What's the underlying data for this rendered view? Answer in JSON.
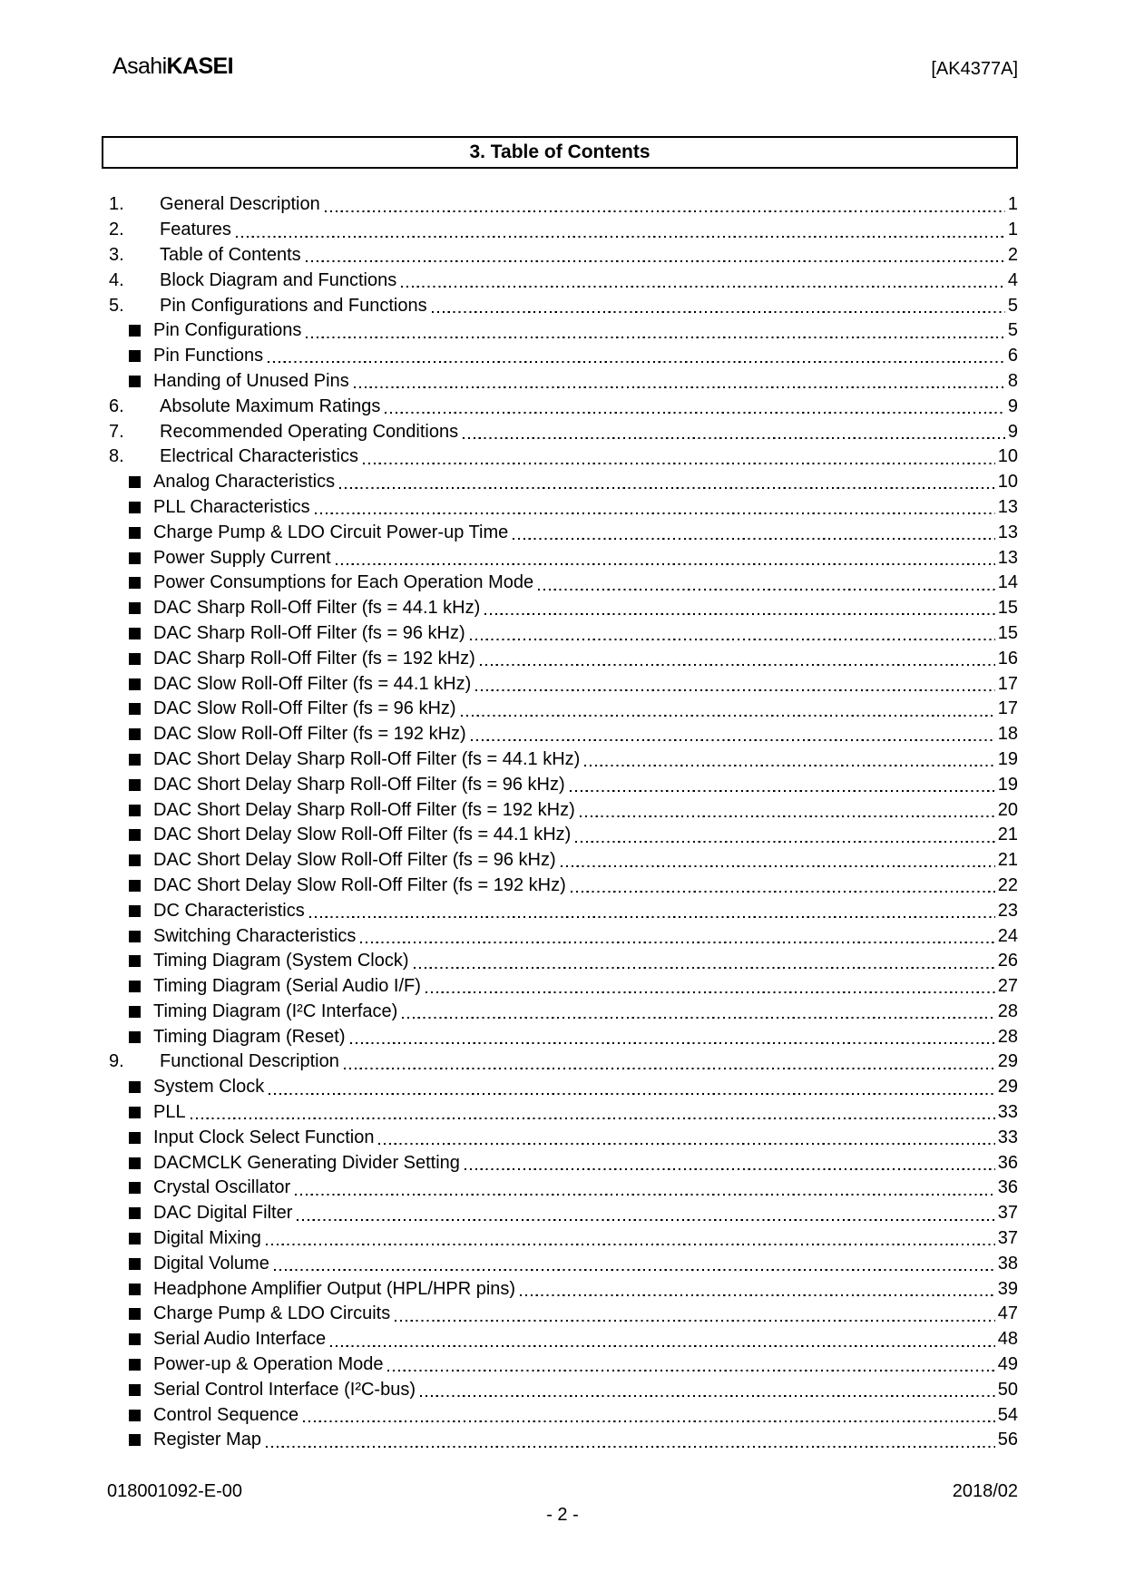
{
  "header": {
    "brand": {
      "regular": "Asahi",
      "bold": "KASEI"
    },
    "document_id": "[AK4377A]"
  },
  "section_title": "3. Table of Contents",
  "toc": {
    "entries": [
      {
        "num": "1.",
        "label": "General Description",
        "page": "1"
      },
      {
        "num": "2.",
        "label": "Features",
        "page": "1"
      },
      {
        "num": "3.",
        "label": "Table of Contents",
        "page": "2"
      },
      {
        "num": "4.",
        "label": "Block Diagram and Functions",
        "page": "4"
      },
      {
        "num": "5.",
        "label": "Pin Configurations and Functions",
        "page": "5"
      },
      {
        "bullet": true,
        "label": "Pin Configurations",
        "page": "5"
      },
      {
        "bullet": true,
        "label": "Pin Functions",
        "page": "6"
      },
      {
        "bullet": true,
        "label": "Handing of Unused Pins",
        "page": "8"
      },
      {
        "num": "6.",
        "label": "Absolute Maximum Ratings",
        "page": "9"
      },
      {
        "num": "7.",
        "label": "Recommended Operating Conditions",
        "page": "9"
      },
      {
        "num": "8.",
        "label": "Electrical Characteristics",
        "page": "10"
      },
      {
        "bullet": true,
        "label": "Analog Characteristics",
        "page": "10"
      },
      {
        "bullet": true,
        "label": "PLL Characteristics",
        "page": "13"
      },
      {
        "bullet": true,
        "label": "Charge Pump & LDO Circuit Power-up Time",
        "page": "13"
      },
      {
        "bullet": true,
        "label": "Power Supply Current",
        "page": "13"
      },
      {
        "bullet": true,
        "label": "Power Consumptions for Each Operation Mode",
        "page": "14"
      },
      {
        "bullet": true,
        "label": "DAC Sharp Roll-Off Filter (fs = 44.1 kHz)",
        "page": "15"
      },
      {
        "bullet": true,
        "label": "DAC Sharp Roll-Off Filter (fs = 96 kHz)",
        "page": "15"
      },
      {
        "bullet": true,
        "label": "DAC Sharp Roll-Off Filter (fs = 192 kHz)",
        "page": "16"
      },
      {
        "bullet": true,
        "label": "DAC Slow Roll-Off Filter (fs = 44.1 kHz)",
        "page": "17"
      },
      {
        "bullet": true,
        "label": "DAC Slow Roll-Off Filter (fs = 96 kHz)",
        "page": "17"
      },
      {
        "bullet": true,
        "label": "DAC Slow Roll-Off Filter (fs = 192 kHz)",
        "page": "18"
      },
      {
        "bullet": true,
        "label": "DAC Short Delay Sharp Roll-Off Filter (fs = 44.1 kHz)",
        "page": "19"
      },
      {
        "bullet": true,
        "label": "DAC Short Delay Sharp Roll-Off Filter (fs = 96 kHz)",
        "page": "19"
      },
      {
        "bullet": true,
        "label": "DAC Short Delay Sharp Roll-Off Filter (fs = 192 kHz)",
        "page": "20"
      },
      {
        "bullet": true,
        "label": "DAC Short Delay Slow Roll-Off Filter (fs = 44.1 kHz)",
        "page": "21"
      },
      {
        "bullet": true,
        "label": "DAC Short Delay Slow Roll-Off Filter (fs = 96 kHz)",
        "page": "21"
      },
      {
        "bullet": true,
        "label": "DAC Short Delay Slow Roll-Off Filter (fs = 192 kHz)",
        "page": "22"
      },
      {
        "bullet": true,
        "label": "DC Characteristics",
        "page": "23"
      },
      {
        "bullet": true,
        "label": "Switching Characteristics",
        "page": "24"
      },
      {
        "bullet": true,
        "label": "Timing Diagram (System Clock)",
        "page": "26"
      },
      {
        "bullet": true,
        "label": "Timing Diagram (Serial Audio I/F)",
        "page": "27"
      },
      {
        "bullet": true,
        "label": "Timing Diagram (I²C Interface)",
        "page": "28"
      },
      {
        "bullet": true,
        "label": "Timing Diagram (Reset)",
        "page": "28"
      },
      {
        "num": "9.",
        "label": "Functional Description",
        "page": "29"
      },
      {
        "bullet": true,
        "label": "System Clock",
        "page": "29"
      },
      {
        "bullet": true,
        "label": "PLL",
        "page": "33"
      },
      {
        "bullet": true,
        "label": "Input Clock Select Function",
        "page": "33"
      },
      {
        "bullet": true,
        "label": "DACMCLK Generating Divider Setting",
        "page": "36"
      },
      {
        "bullet": true,
        "label": "Crystal Oscillator",
        "page": "36"
      },
      {
        "bullet": true,
        "label": "DAC Digital Filter",
        "page": "37"
      },
      {
        "bullet": true,
        "label": "Digital Mixing",
        "page": "37"
      },
      {
        "bullet": true,
        "label": "Digital Volume",
        "page": "38"
      },
      {
        "bullet": true,
        "label": "Headphone Amplifier Output (HPL/HPR pins)",
        "page": "39"
      },
      {
        "bullet": true,
        "label": "Charge Pump & LDO Circuits",
        "page": "47"
      },
      {
        "bullet": true,
        "label": "Serial Audio Interface",
        "page": "48"
      },
      {
        "bullet": true,
        "label": "Power-up & Operation Mode",
        "page": "49"
      },
      {
        "bullet": true,
        "label": "Serial Control Interface (I²C-bus)",
        "page": "50"
      },
      {
        "bullet": true,
        "label": "Control Sequence",
        "page": "54"
      },
      {
        "bullet": true,
        "label": "Register Map",
        "page": "56"
      }
    ]
  },
  "footer": {
    "document_number": "018001092-E-00",
    "date": "2018/02",
    "page_label": "- 2 -"
  },
  "colors": {
    "text": "#000000",
    "background": "#ffffff",
    "border": "#000000"
  }
}
